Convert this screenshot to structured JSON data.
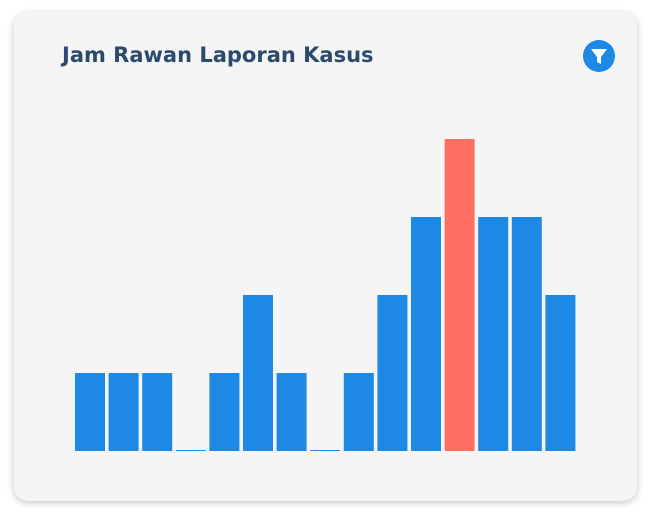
{
  "chart_data": {
    "type": "bar",
    "title": "Jam Rawan Laporan Kasus",
    "values": [
      1,
      1,
      1,
      0,
      1,
      2,
      1,
      0,
      1,
      2,
      3,
      4,
      3,
      3,
      2
    ],
    "colors": [
      "#1e88e5",
      "#1e88e5",
      "#1e88e5",
      "#1e88e5",
      "#1e88e5",
      "#1e88e5",
      "#1e88e5",
      "#1e88e5",
      "#1e88e5",
      "#1e88e5",
      "#1e88e5",
      "#ff6f61",
      "#1e88e5",
      "#1e88e5",
      "#1e88e5"
    ],
    "ylim": [
      0,
      4
    ]
  }
}
